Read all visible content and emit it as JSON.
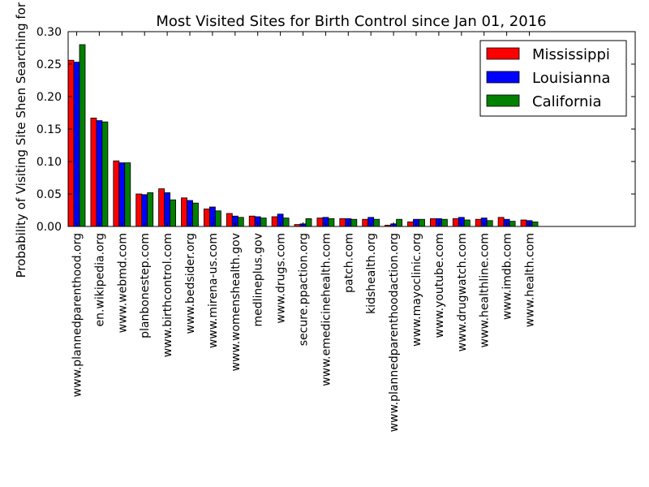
{
  "chart_data": {
    "type": "bar",
    "title": "Most Visited Sites for Birth Control since Jan 01, 2016",
    "xlabel": "",
    "ylabel": "Probability of Visiting Site Shen Searching for Bir",
    "ylim": [
      0,
      0.3
    ],
    "yticks": [
      "0.00",
      "0.05",
      "0.10",
      "0.15",
      "0.20",
      "0.25",
      "0.30"
    ],
    "grid": false,
    "legend_position": "top-right",
    "categories": [
      "www.plannedparenthood.org",
      "en.wikipedia.org",
      "www.webmd.com",
      "planbonestep.com",
      "www.birthcontrol.com",
      "www.bedsider.org",
      "www.mirena-us.com",
      "www.womenshealth.gov",
      "medlineplus.gov",
      "www.drugs.com",
      "secure.ppaction.org",
      "www.emedicinehealth.com",
      "patch.com",
      "kidshealth.org",
      "www.plannedparenthoodaction.org",
      "www.mayoclinic.org",
      "www.youtube.com",
      "www.drugwatch.com",
      "www.healthline.com",
      "www.imdb.com",
      "www.health.com"
    ],
    "series": [
      {
        "name": "Mississippi",
        "color": "#ff0000",
        "values": [
          0.256,
          0.167,
          0.101,
          0.05,
          0.058,
          0.044,
          0.027,
          0.02,
          0.016,
          0.015,
          0.003,
          0.013,
          0.012,
          0.011,
          0.002,
          0.007,
          0.012,
          0.012,
          0.011,
          0.014,
          0.01
        ]
      },
      {
        "name": "Louisianna",
        "color": "#0000ff",
        "values": [
          0.253,
          0.163,
          0.098,
          0.049,
          0.052,
          0.04,
          0.03,
          0.016,
          0.015,
          0.019,
          0.004,
          0.014,
          0.012,
          0.014,
          0.004,
          0.011,
          0.012,
          0.014,
          0.013,
          0.011,
          0.009
        ]
      },
      {
        "name": "California",
        "color": "#008000",
        "values": [
          0.28,
          0.161,
          0.098,
          0.052,
          0.041,
          0.036,
          0.024,
          0.014,
          0.013,
          0.013,
          0.012,
          0.012,
          0.011,
          0.011,
          0.011,
          0.011,
          0.011,
          0.01,
          0.009,
          0.008,
          0.007
        ]
      }
    ]
  }
}
